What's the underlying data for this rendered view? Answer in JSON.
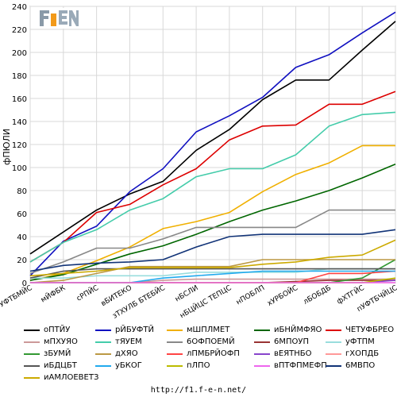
{
  "site_url": "http://f1.f-e-n.net/",
  "logo_text": "F1EN",
  "chart_data": {
    "type": "line",
    "title": "",
    "ylabel": "фПЮЛИ",
    "xlabel": "",
    "ylim": [
      0,
      240
    ],
    "yticks": [
      0,
      20,
      40,
      60,
      80,
      100,
      120,
      140,
      160,
      180,
      200,
      220,
      240
    ],
    "grid": true,
    "legend_position": "bottom",
    "categories": [
      "бФУФТБМЙС",
      "мЙФБК",
      "сРПЙС",
      "вБИТЕКО",
      "зТХУЛБ БТЕБЙС",
      "нБСЛИ",
      "нБЦЙЦС ТЕПЦС",
      "нПОБЛП",
      "хУРБОЙС",
      "лБОБДБ",
      "фХТГЙС",
      "пУФТБЧЙЦС"
    ],
    "series": [
      {
        "name": "оПТЙУ",
        "color": "#000000",
        "values": [
          25,
          44,
          63,
          77,
          88,
          115,
          133,
          159,
          176,
          176,
          202,
          227
        ]
      },
      {
        "name": "рЙБУФТЙ",
        "color": "#1010c0",
        "values": [
          6,
          36,
          49,
          79,
          99,
          131,
          145,
          161,
          187,
          198,
          217,
          235
        ]
      },
      {
        "name": "мШПЛМЕТ",
        "color": "#f0b000",
        "values": [
          2,
          8,
          19,
          31,
          47,
          53,
          61,
          79,
          94,
          104,
          119,
          119
        ]
      },
      {
        "name": "иБНЙМФЯО",
        "color": "#006600",
        "values": [
          2,
          7,
          16,
          25,
          32,
          42,
          53,
          63,
          71,
          80,
          91,
          103
        ]
      },
      {
        "name": "ЧЕТУФБРЕО",
        "color": "#dd0000",
        "values": [
          18,
          35,
          61,
          68,
          85,
          99,
          124,
          136,
          137,
          155,
          155,
          166
        ]
      },
      {
        "name": "мПХУЯО",
        "color": "#cc9999",
        "values": [
          0,
          0,
          0,
          0,
          2,
          3,
          3,
          3,
          3,
          3,
          3,
          3
        ]
      },
      {
        "name": "тЯУЕМ",
        "color": "#44ccaa",
        "values": [
          18,
          35,
          46,
          63,
          73,
          92,
          99,
          99,
          111,
          136,
          146,
          148
        ]
      },
      {
        "name": "6ОФПОЕМЙ",
        "color": "#888888",
        "values": [
          8,
          18,
          30,
          30,
          38,
          48,
          48,
          48,
          48,
          63,
          63,
          63
        ]
      },
      {
        "name": "6МПОУП",
        "color": "#993333",
        "values": [
          0,
          0,
          0,
          0,
          0,
          0,
          0,
          0,
          1,
          2,
          2,
          2
        ]
      },
      {
        "name": "уФТПМ",
        "color": "#99dddd",
        "values": [
          4,
          4,
          6,
          6,
          6,
          9,
          9,
          9,
          9,
          12,
          12,
          12
        ]
      },
      {
        "name": "зБУМЙ",
        "color": "#339933",
        "values": [
          0,
          0,
          0,
          0,
          0,
          0,
          0,
          0,
          0,
          0,
          4,
          20
        ]
      },
      {
        "name": "дХЯО",
        "color": "#bb9944",
        "values": [
          0,
          2,
          8,
          14,
          14,
          14,
          14,
          20,
          20,
          20,
          20,
          20
        ]
      },
      {
        "name": "лПМБРЙОФП",
        "color": "#ff4444",
        "values": [
          0,
          0,
          0,
          0,
          0,
          0,
          0,
          0,
          0,
          8,
          8,
          10
        ]
      },
      {
        "name": "вЕЯТНБО",
        "color": "#8844cc",
        "values": [
          0,
          0,
          0,
          0,
          0,
          0,
          0,
          0,
          0,
          0,
          0,
          2
        ]
      },
      {
        "name": "гХОПДБ",
        "color": "#ff9999",
        "values": [
          0,
          0,
          0,
          0,
          0,
          0,
          0,
          0,
          0,
          0,
          0,
          0
        ]
      },
      {
        "name": "иБДЦБТ",
        "color": "#555555",
        "values": [
          4,
          10,
          12,
          12,
          12,
          12,
          12,
          12,
          12,
          12,
          12,
          12
        ]
      },
      {
        "name": "уБКОГ",
        "color": "#22aaee",
        "values": [
          0,
          0,
          0,
          0,
          4,
          6,
          8,
          10,
          10,
          10,
          10,
          10
        ]
      },
      {
        "name": "пЛПО",
        "color": "#bbbb00",
        "values": [
          0,
          0,
          0,
          0,
          0,
          0,
          0,
          0,
          0,
          0,
          0,
          4
        ]
      },
      {
        "name": "вПТФПМЕФП",
        "color": "#ee66ee",
        "values": [
          0,
          0,
          0,
          0,
          0,
          0,
          0,
          0,
          0,
          0,
          0,
          0
        ]
      },
      {
        "name": "6МВПО",
        "color": "#113377",
        "values": [
          10,
          15,
          17,
          18,
          20,
          31,
          40,
          42,
          42,
          42,
          42,
          46
        ]
      },
      {
        "name": "иАМЛОЕВЕТЗ",
        "color": "#ccaa00",
        "values": [
          6,
          8,
          10,
          13,
          13,
          13,
          13,
          16,
          18,
          22,
          24,
          37
        ]
      }
    ]
  }
}
